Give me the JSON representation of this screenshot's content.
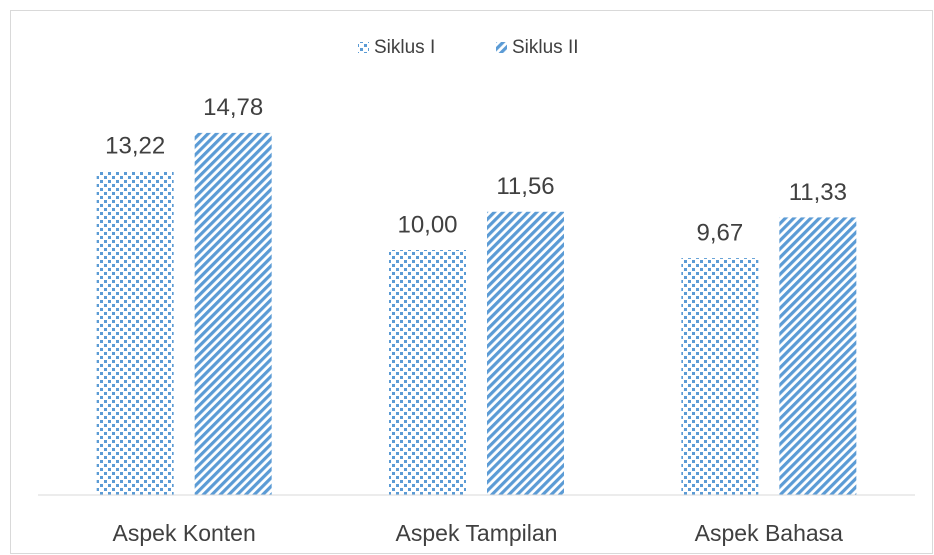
{
  "chart_data": {
    "type": "bar",
    "categories": [
      "Aspek Konten",
      "Aspek Tampilan",
      "Aspek Bahasa"
    ],
    "series": [
      {
        "name": "Siklus I",
        "color": "#5b9bd5",
        "pattern": "dots",
        "values": [
          13.22,
          10.0,
          9.67
        ],
        "value_labels": [
          "13,22",
          "10,00",
          "9,67"
        ]
      },
      {
        "name": "Siklus II",
        "color": "#5b9bd5",
        "pattern": "stripes",
        "values": [
          14.78,
          11.56,
          11.33
        ],
        "value_labels": [
          "14,78",
          "11,56",
          "11,33"
        ]
      }
    ],
    "ylim": [
      0,
      16
    ],
    "legend": "top"
  }
}
